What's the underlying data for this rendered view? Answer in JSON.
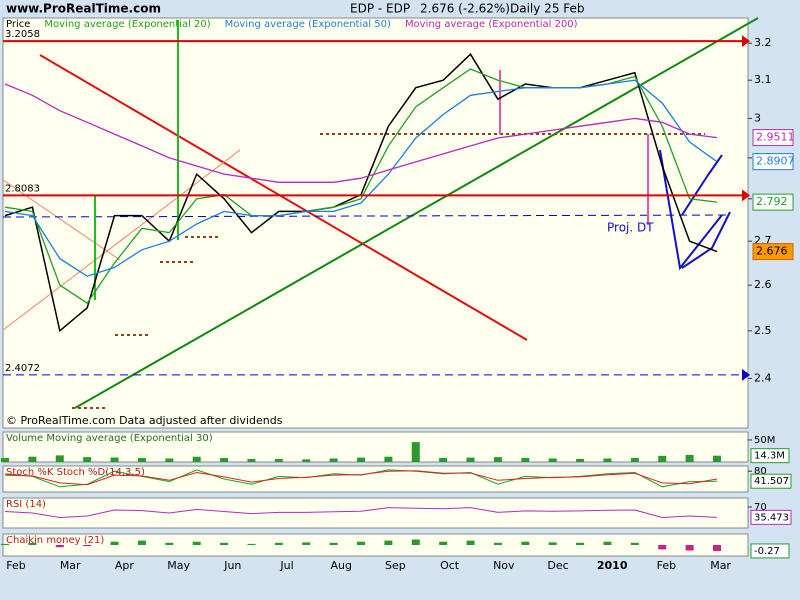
{
  "header": {
    "site": "www.ProRealTime.com",
    "title": "EDP - EDP",
    "quote": "2.676 (-2.62%)",
    "period": "Daily  25 Feb"
  },
  "chart_data": [
    {
      "type": "line",
      "log_scale": true,
      "ylim": [
        2.3,
        3.27
      ],
      "yticks": [
        2.4,
        2.5,
        2.6,
        2.7,
        2.8,
        2.9,
        3,
        3.1,
        3.2
      ],
      "x_labels": [
        "Feb",
        "Mar",
        "Apr",
        "May",
        "Jun",
        "Jul",
        "Aug",
        "Sep",
        "Oct",
        "Nov",
        "Dec",
        "2010",
        "Feb",
        "Mar"
      ],
      "series": [
        {
          "name": "Price",
          "color": "#000000",
          "values": [
            2.76,
            2.78,
            2.5,
            2.55,
            2.76,
            2.76,
            2.7,
            2.86,
            2.8,
            2.72,
            2.77,
            2.77,
            2.78,
            2.81,
            2.98,
            3.08,
            3.1,
            3.17,
            3.05,
            3.09,
            3.08,
            3.08,
            3.1,
            3.12,
            2.88,
            2.7,
            2.676
          ]
        },
        {
          "name": "Moving average (Exponential 20)",
          "color": "#22a022",
          "values": [
            2.78,
            2.77,
            2.6,
            2.56,
            2.65,
            2.73,
            2.72,
            2.8,
            2.81,
            2.76,
            2.76,
            2.77,
            2.78,
            2.8,
            2.93,
            3.03,
            3.08,
            3.13,
            3.1,
            3.08,
            3.08,
            3.08,
            3.09,
            3.11,
            2.98,
            2.8,
            2.792
          ]
        },
        {
          "name": "Moving average (Exponential 50)",
          "color": "#1f7fd6",
          "values": [
            2.77,
            2.76,
            2.66,
            2.62,
            2.64,
            2.68,
            2.7,
            2.74,
            2.77,
            2.76,
            2.76,
            2.77,
            2.77,
            2.79,
            2.86,
            2.95,
            3.01,
            3.06,
            3.07,
            3.08,
            3.08,
            3.08,
            3.09,
            3.1,
            3.04,
            2.94,
            2.8907
          ]
        },
        {
          "name": "Moving average (Exponential 200)",
          "color": "#b82ab8",
          "values": [
            3.09,
            3.06,
            3.02,
            2.99,
            2.96,
            2.93,
            2.9,
            2.88,
            2.86,
            2.85,
            2.84,
            2.84,
            2.84,
            2.85,
            2.87,
            2.89,
            2.91,
            2.93,
            2.95,
            2.96,
            2.97,
            2.98,
            2.99,
            3.0,
            2.99,
            2.96,
            2.9511
          ]
        }
      ],
      "levels": [
        {
          "value": 3.2058,
          "color": "#dd0000"
        },
        {
          "value": 2.8083,
          "color": "#dd0000"
        },
        {
          "value": 2.4072,
          "color": "#0000cc"
        }
      ],
      "annotation": "Proj. DT",
      "footer": "© ProRealTime.com Data adjusted after dividends"
    },
    {
      "type": "bar",
      "title": "Volume Moving average (Exponential 30)",
      "color": "#2a9a2a",
      "values": [
        9000000,
        12000000,
        15000000,
        11000000,
        10000000,
        9000000,
        8000000,
        12000000,
        9000000,
        7000000,
        7000000,
        6000000,
        8000000,
        10000000,
        12000000,
        45000000,
        9000000,
        10000000,
        11000000,
        9000000,
        8000000,
        7000000,
        8000000,
        9000000,
        14000000,
        16000000,
        14300000
      ],
      "ylim": [
        0,
        68000000
      ],
      "yticks": [
        {
          "value": 50000000,
          "label": "50M"
        }
      ],
      "current": {
        "value": 14300000,
        "label": "14.3M"
      }
    },
    {
      "type": "line",
      "title": "Stoch %K Stoch %D(14,3,5)",
      "ylim": [
        0,
        100
      ],
      "yticks": [
        80
      ],
      "series": [
        {
          "color": "#22a022",
          "values": [
            70,
            60,
            20,
            30,
            80,
            60,
            40,
            85,
            50,
            30,
            60,
            55,
            70,
            65,
            85,
            80,
            70,
            75,
            30,
            60,
            55,
            60,
            70,
            75,
            20,
            40,
            41.507
          ]
        },
        {
          "color": "#dd2222",
          "values": [
            65,
            62,
            35,
            28,
            65,
            62,
            45,
            75,
            58,
            38,
            52,
            57,
            65,
            67,
            80,
            82,
            72,
            73,
            45,
            52,
            56,
            58,
            66,
            72,
            35,
            32,
            50
          ]
        }
      ]
    },
    {
      "type": "line",
      "title": "RSI (14)",
      "ylim": [
        0,
        100
      ],
      "yticks": [
        70
      ],
      "series": [
        {
          "color": "#b82ab8",
          "values": [
            55,
            50,
            35,
            40,
            60,
            58,
            50,
            62,
            55,
            48,
            52,
            52,
            54,
            56,
            68,
            66,
            64,
            68,
            52,
            57,
            56,
            57,
            59,
            60,
            35,
            40,
            35.473
          ]
        }
      ]
    },
    {
      "type": "bar",
      "title": "Chaikin money (21)",
      "color": "#2a9a2a",
      "ylim": [
        -0.5,
        0.5
      ],
      "yticks": [],
      "values": [
        0.05,
        0.1,
        -0.1,
        -0.05,
        0.15,
        0.2,
        0.1,
        0.15,
        0.1,
        0.05,
        0.1,
        0.12,
        0.1,
        0.15,
        0.2,
        0.25,
        0.15,
        0.2,
        0.1,
        0.15,
        0.12,
        0.1,
        0.15,
        0.1,
        -0.2,
        -0.25,
        -0.27
      ]
    }
  ]
}
